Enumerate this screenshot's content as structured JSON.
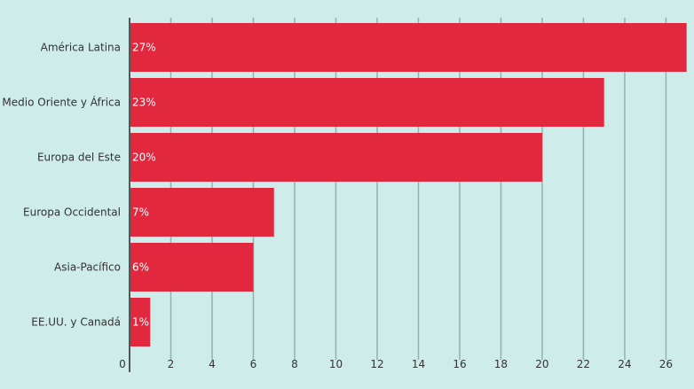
{
  "chart_data": {
    "type": "bar",
    "orientation": "horizontal",
    "categories": [
      "América Latina",
      "Medio Oriente y África",
      "Europa del Este",
      "Europa Occidental",
      "Asia-Pacífico",
      "EE.UU. y Canadá"
    ],
    "values": [
      27,
      23,
      20,
      7,
      6,
      1
    ],
    "data_labels": [
      "27%",
      "23%",
      "20%",
      "7%",
      "6%",
      "1%"
    ],
    "x_ticks": [
      0,
      2,
      4,
      6,
      8,
      10,
      12,
      14,
      16,
      18,
      20,
      22,
      24,
      26
    ],
    "xlim": [
      0,
      27.1
    ],
    "grid": true,
    "colors": {
      "background": "#cdecea",
      "bar": "#e1283f",
      "grid": "#8fb3ad",
      "axis": "#555555"
    }
  }
}
